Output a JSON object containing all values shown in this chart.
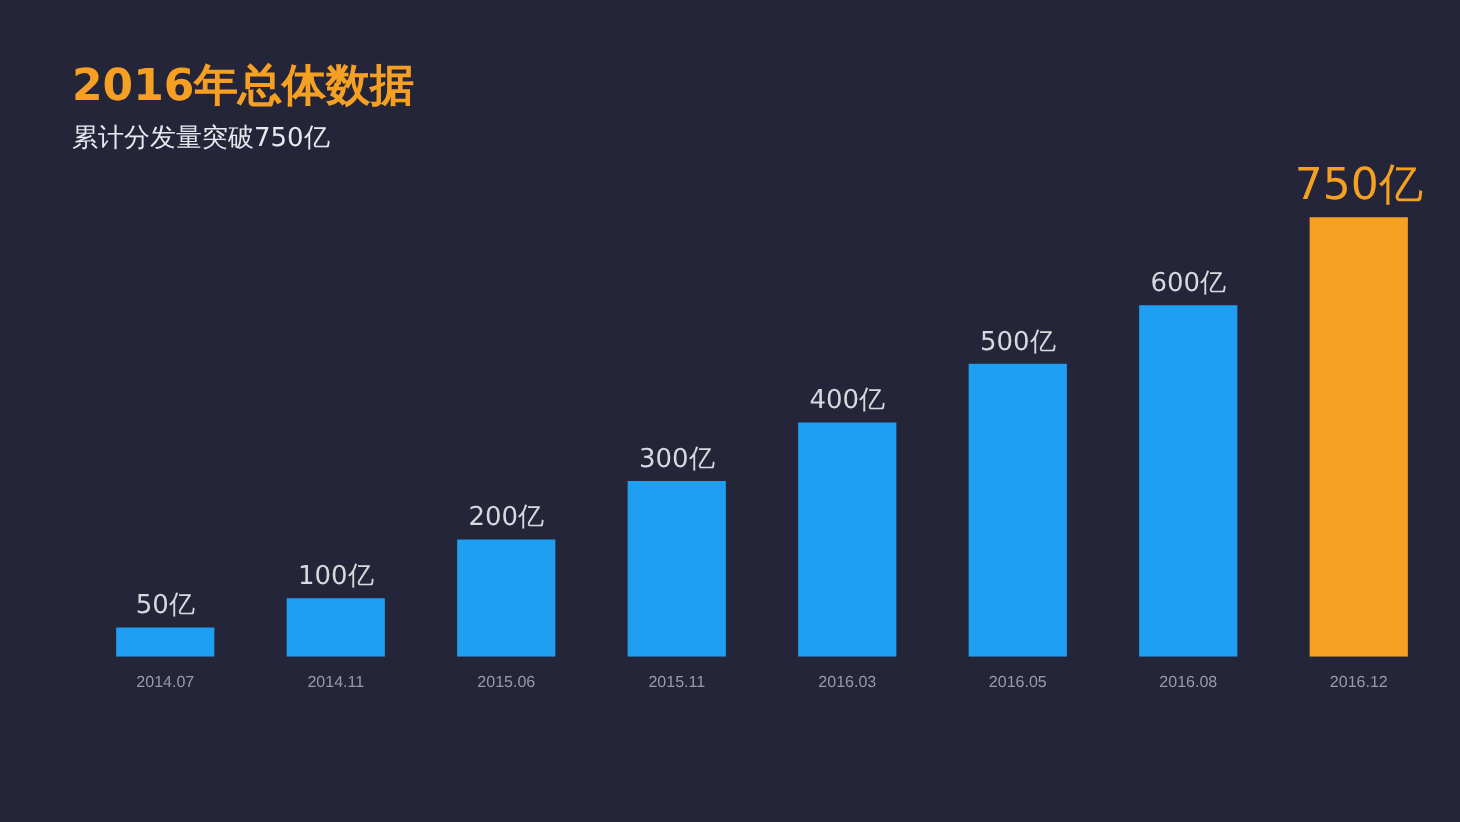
{
  "chart_data": {
    "type": "bar",
    "title": "2016年总体数据",
    "subtitle": "累计分发量突破750亿",
    "categories": [
      "2014.07",
      "2014.11",
      "2015.06",
      "2015.11",
      "2016.03",
      "2016.05",
      "2016.08",
      "2016.12"
    ],
    "values": [
      50,
      100,
      200,
      300,
      400,
      500,
      600,
      750
    ],
    "colors": [
      "#1e9ff2",
      "#1e9ff2",
      "#1e9ff2",
      "#1e9ff2",
      "#1e9ff2",
      "#1e9ff2",
      "#1e9ff2",
      "#f5a023"
    ],
    "value_labels": [
      "50亿",
      "100亿",
      "200亿",
      "300亿",
      "400亿",
      "500亿",
      "600亿",
      "750亿"
    ],
    "grid": false,
    "legend": false
  }
}
